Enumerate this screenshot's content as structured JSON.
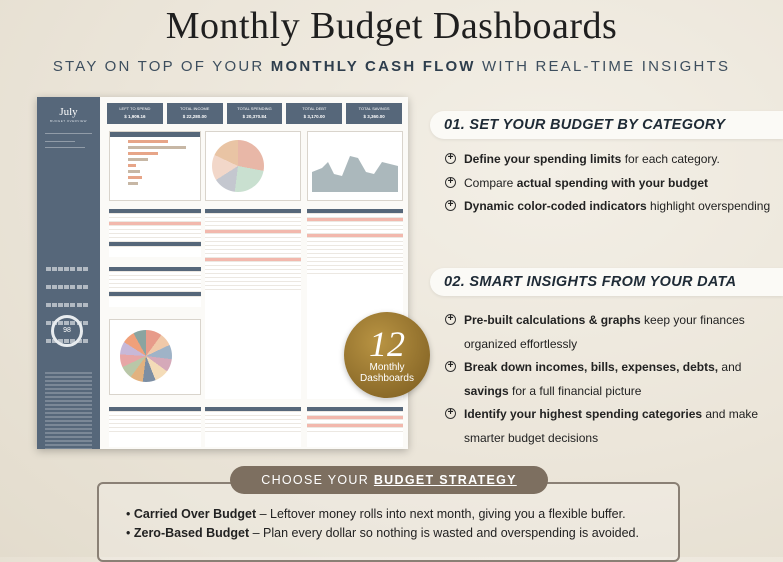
{
  "header": {
    "title": "Monthly Budget Dashboards",
    "subtitle_pre": "STAY ON TOP OF YOUR ",
    "subtitle_bold": "MONTHLY CASH FLOW",
    "subtitle_post": " WITH REAL-TIME INSIGHTS"
  },
  "dashboard": {
    "month": "July",
    "side_subtitle": "BUDGET OVERVIEW",
    "left_to_spend_value": "98",
    "kpis": [
      {
        "label": "LEFT TO SPEND",
        "value": "$ 1,909.16"
      },
      {
        "label": "TOTAL INCOME",
        "value": "$ 22,280.00"
      },
      {
        "label": "TOTAL SPENDING",
        "value": "$ 20,370.84"
      },
      {
        "label": "TOTAL DEBT",
        "value": "$ 3,170.00"
      },
      {
        "label": "TOTAL SAVINGS",
        "value": "$ 3,360.00"
      }
    ],
    "panels": {
      "cash_flow_summary": "CASH FLOW SUMMARY",
      "allocation": "ALLOCATION",
      "balance": "BALANCE",
      "bills": "BILLS",
      "expenses": "EXPENSES",
      "income": "INCOME",
      "where_goes_my_money": "WHERE GOES MY MONEY",
      "debt_payments": "DEBT PAYMENTS",
      "savings": "SAVINGS",
      "daily_balance_overview": "DAILY BALANCE OVERVIEW"
    }
  },
  "badge": {
    "number": "12",
    "label_line1": "Monthly",
    "label_line2": "Dashboards"
  },
  "section1": {
    "heading": "01. SET YOUR BUDGET BY CATEGORY",
    "bullets": [
      {
        "bold": "Define your spending limits",
        "text": " for each category."
      },
      {
        "pre": "Compare ",
        "bold": "actual spending with your budget",
        "text": ""
      },
      {
        "bold": "Dynamic color-coded indicators",
        "text": " highlight overspending"
      }
    ]
  },
  "section2": {
    "heading": "02. SMART INSIGHTS FROM YOUR DATA",
    "bullets": [
      {
        "bold": "Pre-built calculations & graphs",
        "text": " keep your finances organized effortlessly"
      },
      {
        "bold": "Break down incomes, bills, expenses, debts,",
        "text": " and ",
        "bold2": "savings",
        "text2": " for a full financial picture"
      },
      {
        "bold": "Identify your highest spending categories",
        "text": " and make smarter budget decisions"
      }
    ]
  },
  "strategy": {
    "pill_pre": "CHOOSE YOUR ",
    "pill_link": "BUDGET STRATEGY",
    "items": [
      {
        "bold": "Carried Over Budget",
        "text": " – Leftover money rolls into next month, giving you a flexible buffer."
      },
      {
        "bold": "Zero-Based Budget",
        "text": " – Plan every dollar so nothing is wasted and overspending is avoided."
      }
    ]
  },
  "colors": {
    "slate": "#56677a",
    "gold": "#8d6c2a",
    "taupe": "#7d6f60",
    "accent_peach": "#e7a588"
  }
}
